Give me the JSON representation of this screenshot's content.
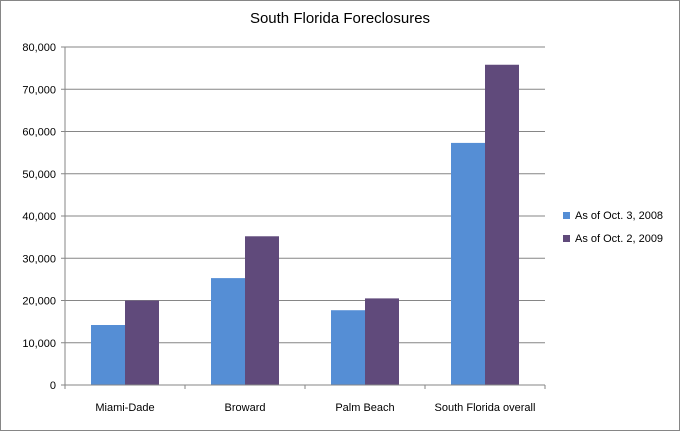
{
  "chart_data": {
    "type": "bar",
    "title": "South Florida Foreclosures",
    "categories": [
      "Miami-Dade",
      "Broward",
      "Palm Beach",
      "South Florida overall"
    ],
    "series": [
      {
        "name": "As of Oct. 3, 2008",
        "color": "#558ED5",
        "values": [
          14200,
          25300,
          17700,
          57300
        ]
      },
      {
        "name": "As of Oct. 2, 2009",
        "color": "#604A7B",
        "values": [
          20000,
          35200,
          20500,
          75800
        ]
      }
    ],
    "y_ticks": [
      "0",
      "10,000",
      "20,000",
      "30,000",
      "40,000",
      "50,000",
      "60,000",
      "70,000",
      "80,000"
    ],
    "ylim": [
      0,
      80000
    ],
    "xlabel": "",
    "ylabel": "",
    "grid": true,
    "legend_position": "right"
  }
}
